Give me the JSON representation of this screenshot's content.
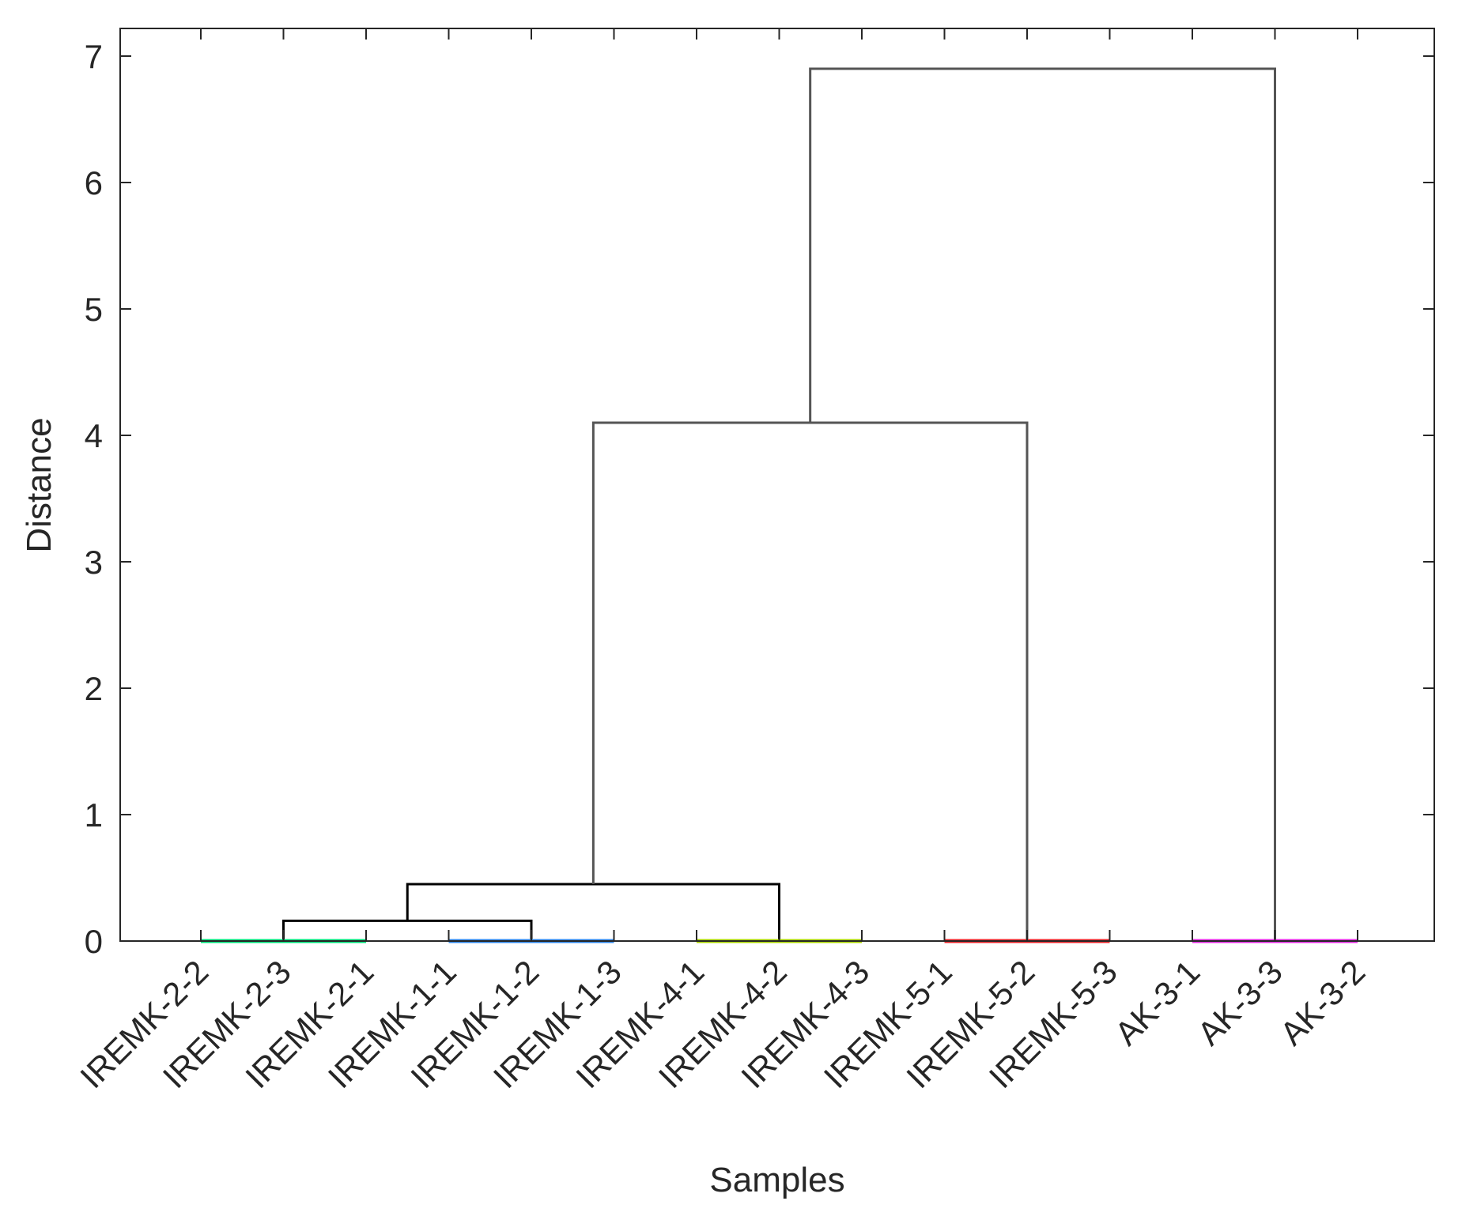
{
  "chart_data": {
    "type": "dendrogram",
    "xlabel": "Samples",
    "ylabel": "Distance",
    "ylim": [
      0,
      7.2
    ],
    "yticks": [
      0,
      1,
      2,
      3,
      4,
      5,
      6,
      7
    ],
    "grid": false,
    "leaves": [
      "IREMK-2-2",
      "IREMK-2-3",
      "IREMK-2-1",
      "IREMK-1-1",
      "IREMK-1-2",
      "IREMK-1-3",
      "IREMK-4-1",
      "IREMK-4-2",
      "IREMK-4-3",
      "IREMK-5-1",
      "IREMK-5-2",
      "IREMK-5-3",
      "AK-3-1",
      "AK-3-3",
      "AK-3-2"
    ],
    "clusters": [
      {
        "leaves": [
          0,
          1,
          2
        ],
        "height": 0,
        "color": "#00e07a"
      },
      {
        "leaves": [
          3,
          4,
          5
        ],
        "height": 0,
        "color": "#2f86e8"
      },
      {
        "leaves": [
          6,
          7,
          8
        ],
        "height": 0,
        "color": "#a8d400"
      },
      {
        "leaves": [
          9,
          10,
          11
        ],
        "height": 0,
        "color": "#e8262b"
      },
      {
        "leaves": [
          12,
          13,
          14
        ],
        "height": 0,
        "color": "#e02ae0"
      }
    ],
    "links": [
      {
        "left": "c0",
        "right": "c1",
        "height": 0.16,
        "color": "#000000"
      },
      {
        "left": "n0",
        "right": "c2",
        "height": 0.45,
        "color": "#000000"
      },
      {
        "left": "n1",
        "right": "c3",
        "height": 4.1,
        "color": "#555555"
      },
      {
        "left": "n2",
        "right": "c4",
        "height": 6.9,
        "color": "#555555"
      }
    ]
  }
}
